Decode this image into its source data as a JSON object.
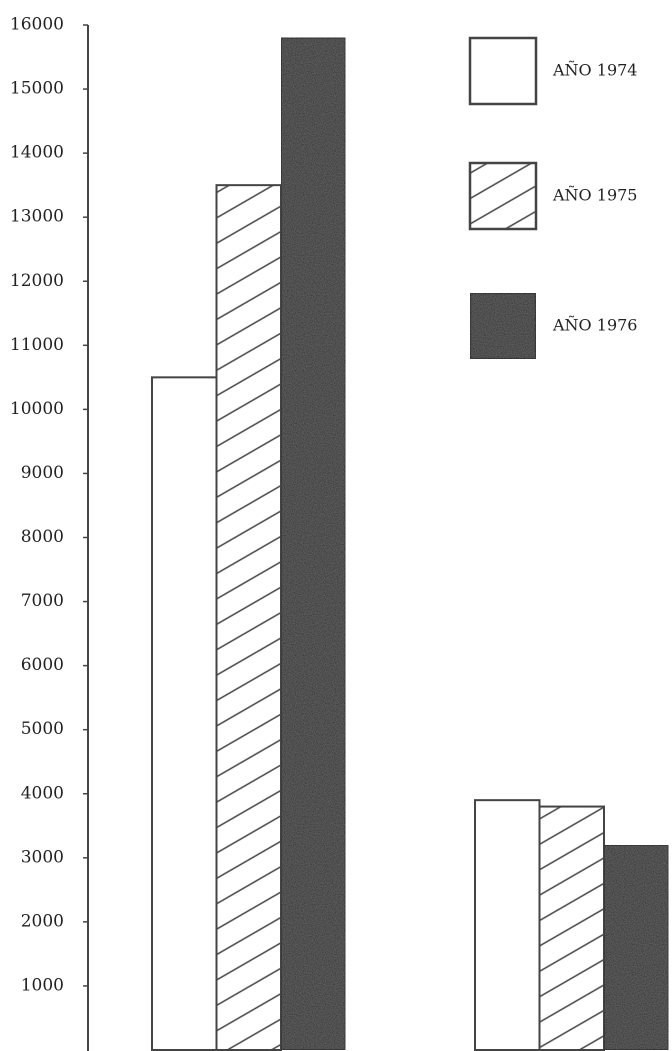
{
  "chart_data": {
    "type": "bar",
    "categories": [
      null,
      null
    ],
    "series": [
      {
        "name": "AÑO 1974",
        "color": "#ffffff",
        "values": [
          10500,
          3900
        ]
      },
      {
        "name": "AÑO 1975",
        "color": "#ffffff",
        "pattern": "hatch",
        "values": [
          13500,
          3800
        ]
      },
      {
        "name": "AÑO 1976",
        "color": "#5c5c5c",
        "pattern": "speckle",
        "values": [
          15800,
          3200
        ]
      }
    ],
    "ylim": [
      0,
      16000
    ],
    "yticks": [
      1000,
      2000,
      3000,
      4000,
      5000,
      6000,
      7000,
      8000,
      9000,
      10000,
      11000,
      12000,
      13000,
      14000,
      15000,
      16000
    ],
    "grid": false,
    "legend": "top-right"
  }
}
